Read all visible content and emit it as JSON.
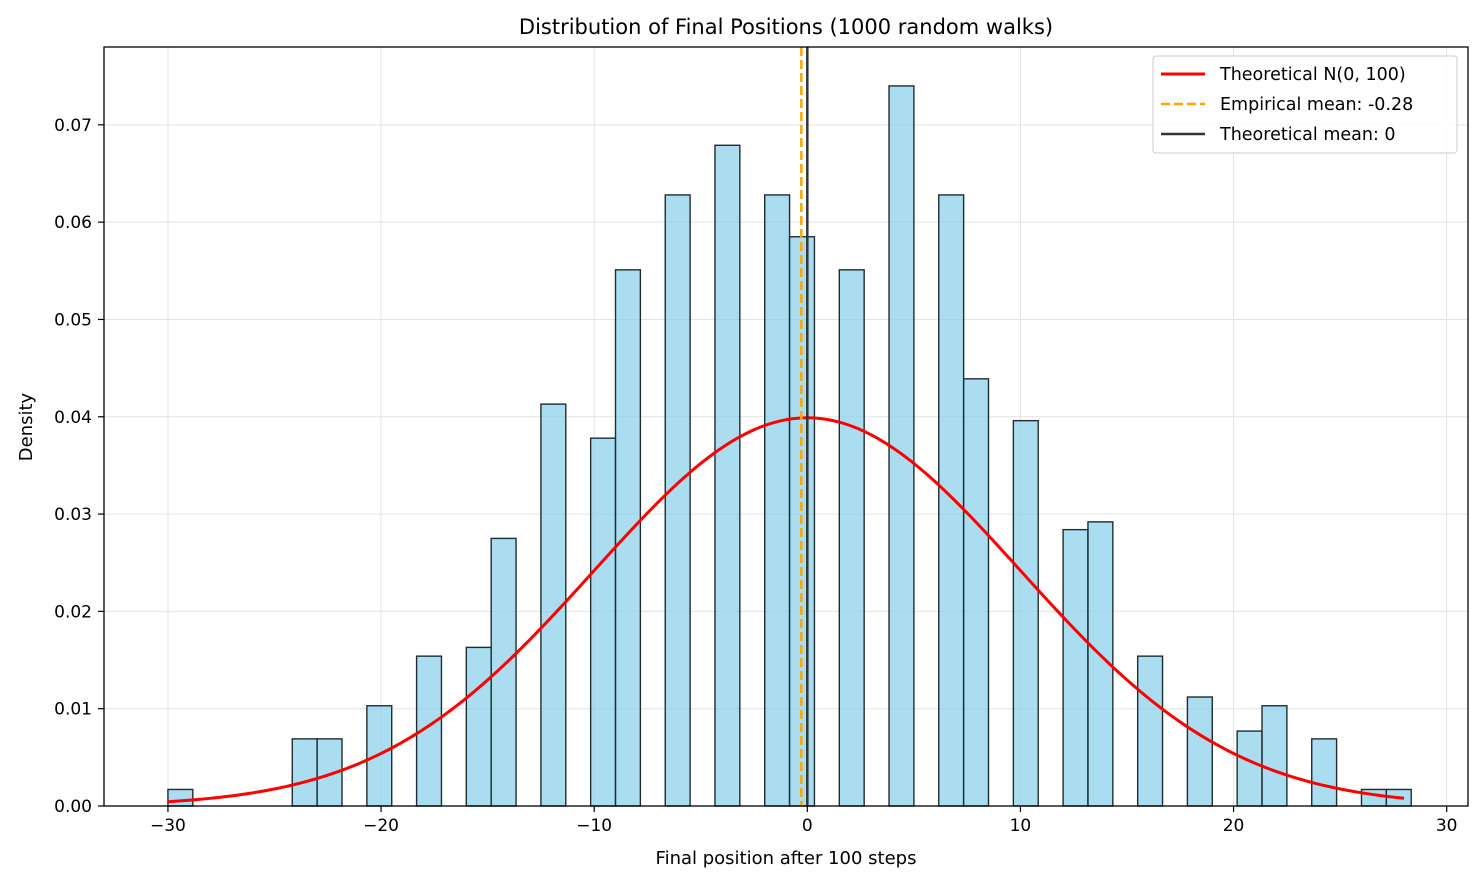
{
  "chart_data": {
    "type": "bar",
    "title": "Distribution of Final Positions (1000 random walks)",
    "xlabel": "Final position after 100 steps",
    "ylabel": "Density",
    "xlim": [
      -33,
      31
    ],
    "ylim": [
      0,
      0.078
    ],
    "xticks": [
      -30,
      -20,
      -10,
      0,
      10,
      20,
      30
    ],
    "xtick_labels": [
      "−30",
      "−20",
      "−10",
      "0",
      "10",
      "20",
      "30"
    ],
    "yticks": [
      0.0,
      0.01,
      0.02,
      0.03,
      0.04,
      0.05,
      0.06,
      0.07
    ],
    "ytick_labels": [
      "0.00",
      "0.01",
      "0.02",
      "0.03",
      "0.04",
      "0.05",
      "0.06",
      "0.07"
    ],
    "grid": true,
    "legend_position": "top-right",
    "bin_start": -30,
    "bin_width": 1.1667,
    "bin_values": [
      0.0017,
      0,
      0,
      0,
      0,
      0.0069,
      0.0069,
      0,
      0.0103,
      0,
      0.0154,
      0,
      0.0163,
      0.0275,
      0,
      0.0413,
      0,
      0.0378,
      0.0551,
      0,
      0.0628,
      0,
      0.0679,
      0,
      0.0628,
      0.0585,
      0,
      0.0551,
      0,
      0.074,
      0,
      0.0628,
      0.0439,
      0,
      0.0396,
      0,
      0.0284,
      0.0292,
      0,
      0.0154,
      0,
      0.0112,
      0,
      0.0077,
      0.0103,
      0,
      0.0069,
      0,
      0.0017,
      0.0017
    ],
    "bar_color": "#87ceeb",
    "bar_edge_color": "#1f2d33",
    "series": [
      {
        "name": "Theoretical N(0, 100)",
        "type": "line",
        "color": "#ff0000",
        "style": "solid",
        "mean": 0,
        "std": 10,
        "x_range": [
          -30,
          28
        ]
      },
      {
        "name": "Empirical mean: -0.28",
        "type": "vline",
        "color": "#ffa500",
        "style": "dashed",
        "x": -0.28
      },
      {
        "name": "Theoretical mean: 0",
        "type": "vline",
        "color": "#333333",
        "style": "solid",
        "x": 0
      }
    ]
  }
}
